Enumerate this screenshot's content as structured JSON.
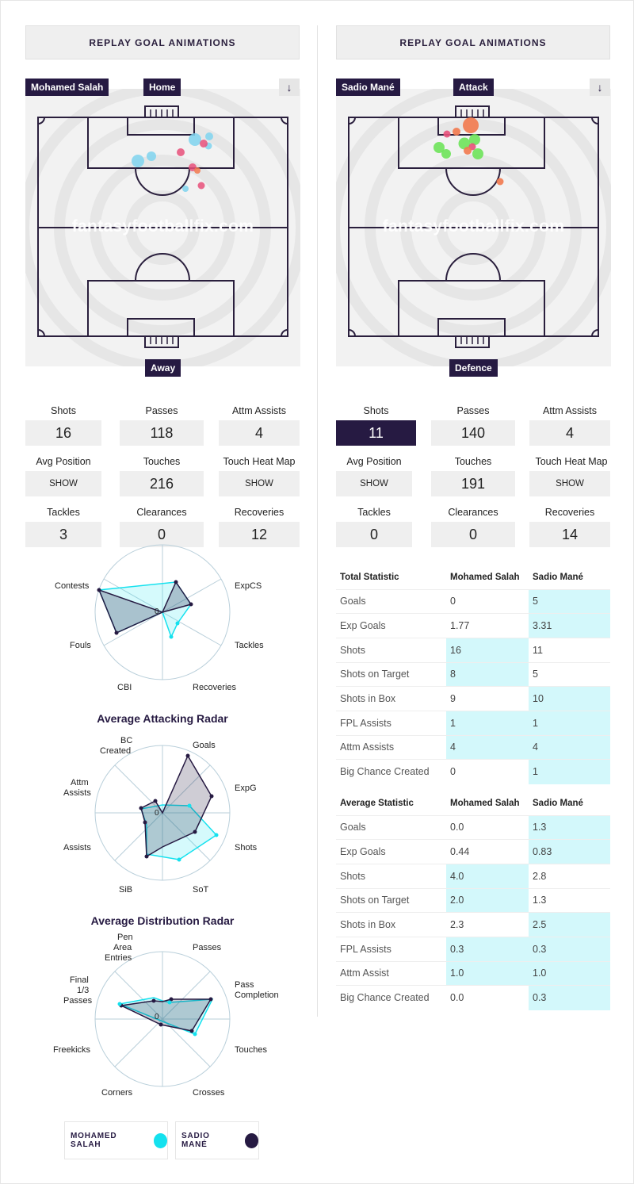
{
  "replay_label": "REPLAY GOAL ANIMATIONS",
  "watermark": "fantasyfootballfix.com",
  "download_icon": "download-arrow-icon",
  "left": {
    "player_tag": "Mohamed Salah",
    "top_tag": "Home",
    "bottom_tag": "Away",
    "stats": {
      "shots_label": "Shots",
      "shots": "16",
      "passes_label": "Passes",
      "passes": "118",
      "attm_assists_label": "Attm Assists",
      "attm_assists": "4",
      "avg_position_label": "Avg Position",
      "avg_position_btn": "SHOW",
      "touches_label": "Touches",
      "touches": "216",
      "heat_map_label": "Touch Heat Map",
      "heat_map_btn": "SHOW",
      "tackles_label": "Tackles",
      "tackles": "3",
      "clearances_label": "Clearances",
      "clearances": "0",
      "recoveries_label": "Recoveries",
      "recoveries": "12"
    }
  },
  "right": {
    "player_tag": "Sadio Mané",
    "top_tag": "Attack",
    "bottom_tag": "Defence",
    "stats": {
      "shots_label": "Shots",
      "shots": "11",
      "passes_label": "Passes",
      "passes": "140",
      "attm_assists_label": "Attm Assists",
      "attm_assists": "4",
      "avg_position_label": "Avg Position",
      "avg_position_btn": "SHOW",
      "touches_label": "Touches",
      "touches": "191",
      "heat_map_label": "Touch Heat Map",
      "heat_map_btn": "SHOW",
      "tackles_label": "Tackles",
      "tackles": "0",
      "clearances_label": "Clearances",
      "clearances": "0",
      "recoveries_label": "Recoveries",
      "recoveries": "14"
    }
  },
  "radars": {
    "defensive": {
      "labels": {
        "expcs": "ExpCS",
        "tackles": "Tackles",
        "recoveries": "Recoveries",
        "cbi": "CBI",
        "fouls": "Fouls",
        "contests": "Contests"
      },
      "zero": "0"
    },
    "attacking": {
      "title": "Average Attacking Radar",
      "labels": {
        "goals": "Goals",
        "expg": "ExpG",
        "shots": "Shots",
        "sot": "SoT",
        "sib": "SiB",
        "assists": "Assists",
        "attm1": "Attm",
        "attm2": "Assists",
        "bc1": "BC",
        "bc2": "Created"
      },
      "zero": "0"
    },
    "distribution": {
      "title": "Average Distribution Radar",
      "labels": {
        "passes": "Passes",
        "pc1": "Pass",
        "pc2": "Completion",
        "touches": "Touches",
        "crosses": "Crosses",
        "corners": "Corners",
        "freekicks": "Freekicks",
        "f1": "Final",
        "f2": "1/3",
        "f3": "Passes",
        "pe1": "Pen",
        "pe2": "Area",
        "pe3": "Entries"
      },
      "zero": "0"
    }
  },
  "legend": {
    "salah": "MOHAMED SALAH",
    "mane": "SADIO MANÉ",
    "salah_color": "#14e1ee",
    "mane_color": "#261a42"
  },
  "total_table": {
    "headers": [
      "Total Statistic",
      "Mohamed Salah",
      "Sadio Mané"
    ],
    "rows": [
      [
        "Goals",
        "0",
        "5"
      ],
      [
        "Exp Goals",
        "1.77",
        "3.31"
      ],
      [
        "Shots",
        "16",
        "11"
      ],
      [
        "Shots on Target",
        "8",
        "5"
      ],
      [
        "Shots in Box",
        "9",
        "10"
      ],
      [
        "FPL Assists",
        "1",
        "1"
      ],
      [
        "Attm Assists",
        "4",
        "4"
      ],
      [
        "Big Chance Created",
        "0",
        "1"
      ]
    ]
  },
  "average_table": {
    "headers": [
      "Average Statistic",
      "Mohamed Salah",
      "Sadio Mané"
    ],
    "rows": [
      [
        "Goals",
        "0.0",
        "1.3"
      ],
      [
        "Exp Goals",
        "0.44",
        "0.83"
      ],
      [
        "Shots",
        "4.0",
        "2.8"
      ],
      [
        "Shots on Target",
        "2.0",
        "1.3"
      ],
      [
        "Shots in Box",
        "2.3",
        "2.5"
      ],
      [
        "FPL Assists",
        "0.3",
        "0.3"
      ],
      [
        "Attm Assist",
        "1.0",
        "1.0"
      ],
      [
        "Big Chance Created",
        "0.0",
        "0.3"
      ]
    ]
  },
  "colors": {
    "highlight": "#d3f8fb",
    "navy": "#261a42",
    "salah": "#14e1ee"
  }
}
